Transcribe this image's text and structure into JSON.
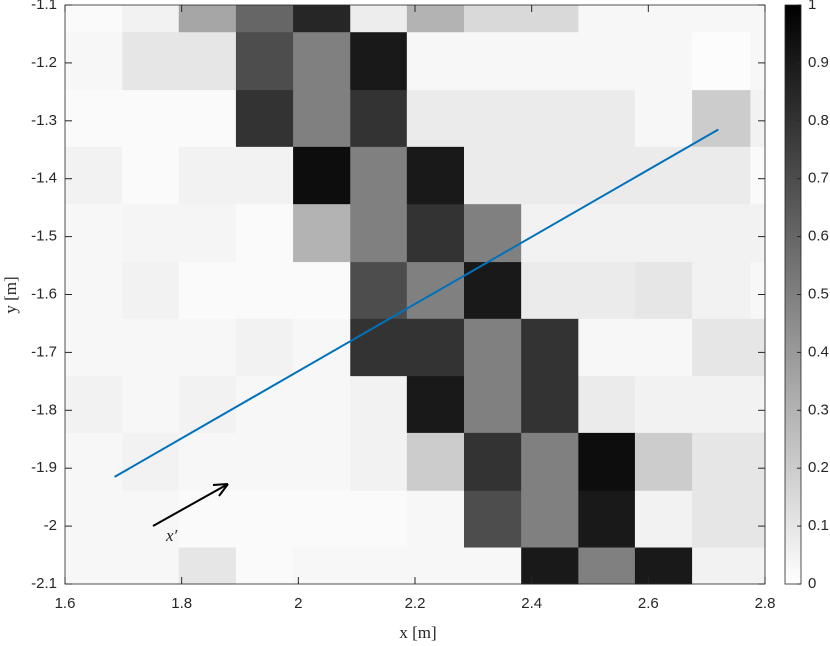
{
  "chart_data": {
    "type": "heatmap",
    "xlabel": "x [m]",
    "ylabel": "y [m]",
    "xlim": [
      1.6,
      2.8
    ],
    "ylim": [
      -2.1,
      -1.1
    ],
    "xticks": [
      1.6,
      1.8,
      2,
      2.2,
      2.4,
      2.6,
      2.8
    ],
    "yticks": [
      -1.1,
      -1.2,
      -1.3,
      -1.4,
      -1.5,
      -1.6,
      -1.7,
      -1.8,
      -1.9,
      -2,
      -2.1
    ],
    "x_edges": [
      1.6,
      1.698,
      1.795,
      1.893,
      1.991,
      2.089,
      2.186,
      2.284,
      2.382,
      2.48,
      2.577,
      2.675,
      2.775,
      2.8
    ],
    "y_edges": [
      -1.1,
      -1.147,
      -1.247,
      -1.345,
      -1.444,
      -1.544,
      -1.642,
      -1.741,
      -1.839,
      -1.939,
      -2.037,
      -2.1
    ],
    "values": [
      [
        0.02,
        0.05,
        0.35,
        0.6,
        0.85,
        0.07,
        0.3,
        0.15,
        0.15,
        0.03,
        0.03,
        0.03,
        0.03
      ],
      [
        0.03,
        0.1,
        0.1,
        0.7,
        0.5,
        0.9,
        0.03,
        0.03,
        0.03,
        0.03,
        0.03,
        0.01,
        0.03
      ],
      [
        0.02,
        0.02,
        0.02,
        0.8,
        0.5,
        0.8,
        0.08,
        0.08,
        0.08,
        0.08,
        0.03,
        0.2,
        0.05
      ],
      [
        0.05,
        0.02,
        0.05,
        0.05,
        0.95,
        0.5,
        0.9,
        0.08,
        0.08,
        0.08,
        0.08,
        0.08,
        0.02
      ],
      [
        0.03,
        0.04,
        0.04,
        0.02,
        0.3,
        0.5,
        0.8,
        0.5,
        0.05,
        0.05,
        0.05,
        0.05,
        0.05
      ],
      [
        0.03,
        0.05,
        0.02,
        0.02,
        0.02,
        0.7,
        0.5,
        0.9,
        0.08,
        0.08,
        0.1,
        0.05,
        0.03
      ],
      [
        0.03,
        0.03,
        0.03,
        0.05,
        0.03,
        0.8,
        0.8,
        0.5,
        0.8,
        0.03,
        0.03,
        0.1,
        0.1
      ],
      [
        0.05,
        0.03,
        0.05,
        0.03,
        0.03,
        0.05,
        0.9,
        0.5,
        0.8,
        0.08,
        0.05,
        0.05,
        0.05
      ],
      [
        0.03,
        0.05,
        0.03,
        0.03,
        0.03,
        0.05,
        0.2,
        0.8,
        0.5,
        0.95,
        0.2,
        0.1,
        0.1
      ],
      [
        0.03,
        0.03,
        0.02,
        0.02,
        0.02,
        0.02,
        0.03,
        0.7,
        0.5,
        0.9,
        0.05,
        0.1,
        0.1
      ],
      [
        0.03,
        0.03,
        0.1,
        0.02,
        0.03,
        0.03,
        0.03,
        0.03,
        0.9,
        0.5,
        0.9,
        0.05,
        0.05
      ]
    ],
    "clim": [
      0,
      1
    ],
    "cticks": [
      0,
      0.1,
      0.2,
      0.3,
      0.4,
      0.5,
      0.6,
      0.7,
      0.8,
      0.9,
      1
    ],
    "line": {
      "x": [
        1.685,
        2.72
      ],
      "y": [
        -1.915,
        -1.315
      ],
      "color": "#0072bd"
    },
    "annotation": "x′"
  }
}
